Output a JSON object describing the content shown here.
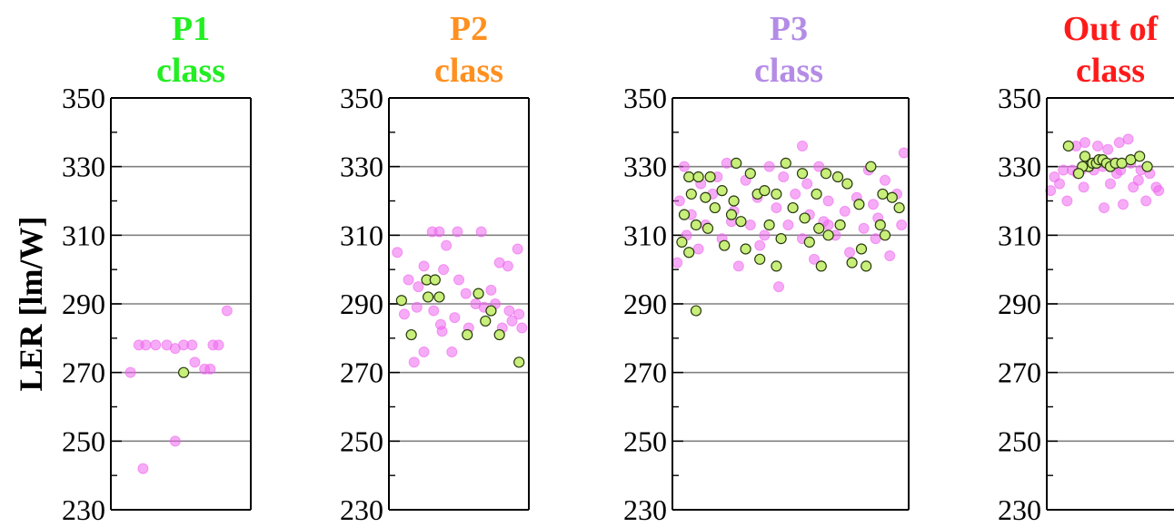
{
  "colors": {
    "pink_fill": "#ee66ee",
    "green_fill": "#c8ef7a",
    "green_stroke": "#2a3a10",
    "grid": "#808080"
  },
  "chart_data": [
    {
      "type": "scatter",
      "title": [
        "P1",
        "class"
      ],
      "title_color": "#22ee22",
      "ylabel": "LER [lm/W]",
      "ylim": [
        230,
        350
      ],
      "yticks": [
        230,
        250,
        270,
        290,
        310,
        330,
        350
      ],
      "grid": true,
      "series": [
        {
          "marker": "pink",
          "points": [
            [
              0.2,
              278
            ],
            [
              0.25,
              278
            ],
            [
              0.32,
              278
            ],
            [
              0.4,
              278
            ],
            [
              0.46,
              277
            ],
            [
              0.52,
              278
            ],
            [
              0.58,
              278
            ],
            [
              0.73,
              278
            ],
            [
              0.77,
              278
            ],
            [
              0.83,
              288
            ],
            [
              0.6,
              273
            ],
            [
              0.67,
              271
            ],
            [
              0.71,
              271
            ],
            [
              0.14,
              270
            ],
            [
              0.46,
              250
            ],
            [
              0.23,
              242
            ]
          ]
        },
        {
          "marker": "green",
          "points": [
            [
              0.52,
              270
            ]
          ]
        }
      ]
    },
    {
      "type": "scatter",
      "title": [
        "P2",
        "class"
      ],
      "title_color": "#ff9020",
      "ylim": [
        230,
        350
      ],
      "yticks": [
        230,
        250,
        270,
        290,
        310,
        330,
        350
      ],
      "grid": true,
      "series": [
        {
          "marker": "pink",
          "points": [
            [
              0.06,
              305
            ],
            [
              0.31,
              311
            ],
            [
              0.36,
              311
            ],
            [
              0.49,
              311
            ],
            [
              0.66,
              311
            ],
            [
              0.41,
              307
            ],
            [
              0.92,
              306
            ],
            [
              0.25,
              301
            ],
            [
              0.39,
              300
            ],
            [
              0.79,
              302
            ],
            [
              0.85,
              301
            ],
            [
              0.14,
              297
            ],
            [
              0.21,
              295
            ],
            [
              0.5,
              297
            ],
            [
              0.55,
              293
            ],
            [
              0.73,
              294
            ],
            [
              0.2,
              289
            ],
            [
              0.32,
              288
            ],
            [
              0.47,
              286
            ],
            [
              0.62,
              290
            ],
            [
              0.76,
              290
            ],
            [
              0.86,
              288
            ],
            [
              0.93,
              287
            ],
            [
              0.11,
              287
            ],
            [
              0.37,
              284
            ],
            [
              0.57,
              283
            ],
            [
              0.81,
              283
            ],
            [
              0.88,
              285
            ],
            [
              0.95,
              283
            ],
            [
              0.25,
              276
            ],
            [
              0.45,
              276
            ],
            [
              0.18,
              273
            ],
            [
              0.38,
              282
            ],
            [
              0.68,
              289
            ]
          ]
        },
        {
          "marker": "green",
          "points": [
            [
              0.09,
              291
            ],
            [
              0.27,
              297
            ],
            [
              0.33,
              297
            ],
            [
              0.28,
              292
            ],
            [
              0.36,
              292
            ],
            [
              0.64,
              293
            ],
            [
              0.73,
              288
            ],
            [
              0.69,
              285
            ],
            [
              0.16,
              281
            ],
            [
              0.56,
              281
            ],
            [
              0.79,
              281
            ],
            [
              0.93,
              273
            ]
          ]
        }
      ]
    },
    {
      "type": "scatter",
      "title": [
        "P3",
        "class"
      ],
      "title_color": "#b48ce6",
      "ylim": [
        230,
        350
      ],
      "yticks": [
        230,
        250,
        270,
        290,
        310,
        330,
        350
      ],
      "grid": true,
      "series": [
        {
          "marker": "pink",
          "points": [
            [
              0.55,
              336
            ],
            [
              0.98,
              334
            ],
            [
              0.05,
              330
            ],
            [
              0.23,
              331
            ],
            [
              0.41,
              330
            ],
            [
              0.62,
              330
            ],
            [
              0.83,
              329
            ],
            [
              0.7,
              327
            ],
            [
              0.12,
              325
            ],
            [
              0.31,
              326
            ],
            [
              0.47,
              327
            ],
            [
              0.9,
              326
            ],
            [
              0.03,
              320
            ],
            [
              0.17,
              322
            ],
            [
              0.36,
              321
            ],
            [
              0.52,
              322
            ],
            [
              0.66,
              320
            ],
            [
              0.78,
              321
            ],
            [
              0.95,
              322
            ],
            [
              0.08,
              316
            ],
            [
              0.26,
              317
            ],
            [
              0.44,
              318
            ],
            [
              0.58,
              316
            ],
            [
              0.73,
              317
            ],
            [
              0.87,
              315
            ],
            [
              0.14,
              313
            ],
            [
              0.33,
              313
            ],
            [
              0.49,
              313
            ],
            [
              0.64,
              314
            ],
            [
              0.81,
              312
            ],
            [
              0.97,
              313
            ],
            [
              0.06,
              310
            ],
            [
              0.21,
              309
            ],
            [
              0.39,
              310
            ],
            [
              0.55,
              309
            ],
            [
              0.69,
              310
            ],
            [
              0.86,
              309
            ],
            [
              0.02,
              302
            ],
            [
              0.28,
              301
            ],
            [
              0.6,
              303
            ],
            [
              0.92,
              304
            ],
            [
              0.45,
              295
            ],
            [
              0.11,
              306
            ],
            [
              0.75,
              305
            ],
            [
              0.37,
              307
            ],
            [
              0.19,
              327
            ],
            [
              0.57,
              325
            ],
            [
              0.85,
              319
            ],
            [
              0.66,
              313
            ],
            [
              0.25,
              314
            ]
          ]
        },
        {
          "marker": "green",
          "points": [
            [
              0.07,
              327
            ],
            [
              0.11,
              327
            ],
            [
              0.16,
              327
            ],
            [
              0.27,
              331
            ],
            [
              0.33,
              328
            ],
            [
              0.48,
              331
            ],
            [
              0.55,
              328
            ],
            [
              0.65,
              328
            ],
            [
              0.7,
              327
            ],
            [
              0.08,
              322
            ],
            [
              0.14,
              321
            ],
            [
              0.21,
              323
            ],
            [
              0.26,
              320
            ],
            [
              0.36,
              322
            ],
            [
              0.39,
              323
            ],
            [
              0.44,
              322
            ],
            [
              0.61,
              322
            ],
            [
              0.74,
              325
            ],
            [
              0.84,
              330
            ],
            [
              0.89,
              322
            ],
            [
              0.93,
              321
            ],
            [
              0.05,
              316
            ],
            [
              0.18,
              318
            ],
            [
              0.25,
              316
            ],
            [
              0.51,
              318
            ],
            [
              0.56,
              315
            ],
            [
              0.79,
              319
            ],
            [
              0.96,
              318
            ],
            [
              0.1,
              313
            ],
            [
              0.15,
              312
            ],
            [
              0.29,
              314
            ],
            [
              0.41,
              313
            ],
            [
              0.62,
              312
            ],
            [
              0.71,
              313
            ],
            [
              0.88,
              313
            ],
            [
              0.04,
              308
            ],
            [
              0.22,
              307
            ],
            [
              0.31,
              306
            ],
            [
              0.46,
              309
            ],
            [
              0.58,
              308
            ],
            [
              0.66,
              310
            ],
            [
              0.8,
              306
            ],
            [
              0.9,
              310
            ],
            [
              0.07,
              305
            ],
            [
              0.37,
              303
            ],
            [
              0.44,
              301
            ],
            [
              0.63,
              301
            ],
            [
              0.76,
              302
            ],
            [
              0.82,
              301
            ],
            [
              0.1,
              288
            ]
          ]
        }
      ]
    },
    {
      "type": "scatter",
      "title": [
        "Out of",
        "class"
      ],
      "title_color": "#ff1a1a",
      "ylim": [
        230,
        350
      ],
      "yticks": [
        230,
        250,
        270,
        290,
        310,
        330,
        350
      ],
      "grid": true,
      "series": [
        {
          "marker": "pink",
          "points": [
            [
              0.23,
              336
            ],
            [
              0.3,
              337
            ],
            [
              0.4,
              336
            ],
            [
              0.48,
              335
            ],
            [
              0.57,
              337
            ],
            [
              0.64,
              338
            ],
            [
              0.13,
              329
            ],
            [
              0.2,
              329
            ],
            [
              0.27,
              329
            ],
            [
              0.35,
              331
            ],
            [
              0.44,
              330
            ],
            [
              0.51,
              331
            ],
            [
              0.58,
              329
            ],
            [
              0.66,
              331
            ],
            [
              0.74,
              329
            ],
            [
              0.81,
              328
            ],
            [
              0.06,
              327
            ],
            [
              0.24,
              328
            ],
            [
              0.37,
              329
            ],
            [
              0.55,
              328
            ],
            [
              0.72,
              326
            ],
            [
              0.03,
              323
            ],
            [
              0.1,
              325
            ],
            [
              0.29,
              324
            ],
            [
              0.5,
              325
            ],
            [
              0.68,
              324
            ],
            [
              0.86,
              324
            ],
            [
              0.16,
              320
            ],
            [
              0.6,
              319
            ],
            [
              0.78,
              320
            ],
            [
              0.45,
              318
            ],
            [
              0.88,
              323
            ]
          ]
        },
        {
          "marker": "green",
          "points": [
            [
              0.17,
              336
            ],
            [
              0.3,
              333
            ],
            [
              0.33,
              330
            ],
            [
              0.36,
              331
            ],
            [
              0.39,
              331
            ],
            [
              0.41,
              332
            ],
            [
              0.44,
              332
            ],
            [
              0.47,
              331
            ],
            [
              0.5,
              330
            ],
            [
              0.54,
              331
            ],
            [
              0.59,
              331
            ],
            [
              0.66,
              332
            ],
            [
              0.73,
              333
            ],
            [
              0.79,
              330
            ],
            [
              0.28,
              330
            ],
            [
              0.25,
              328
            ]
          ]
        }
      ]
    }
  ]
}
